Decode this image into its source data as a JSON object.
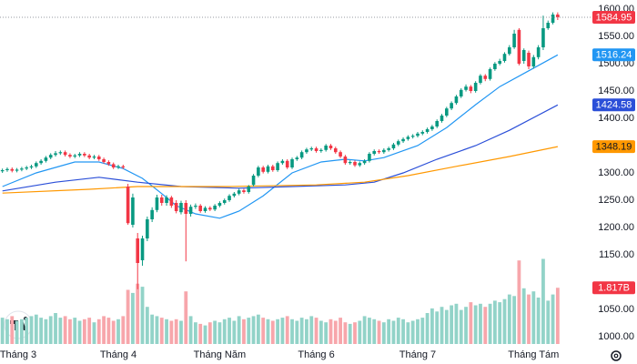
{
  "chart_data": {
    "type": "candlestick",
    "up_color": "#089981",
    "down_color": "#f23645",
    "xlim": [
      -0.5,
      122
    ],
    "ylim": [
      1000,
      1600
    ],
    "yticks": [
      {
        "value": 1600,
        "label": "1600.00"
      },
      {
        "value": 1550,
        "label": "1550.00"
      },
      {
        "value": 1500,
        "label": "1500.00"
      },
      {
        "value": 1450,
        "label": "1450.00"
      },
      {
        "value": 1400,
        "label": "1400.00"
      },
      {
        "value": 1300,
        "label": "1300.00"
      },
      {
        "value": 1250,
        "label": "1250.00"
      },
      {
        "value": 1200,
        "label": "1200.00"
      },
      {
        "value": 1150,
        "label": "1150.00"
      },
      {
        "value": 1050,
        "label": "1050.00"
      },
      {
        "value": 1000,
        "label": "1000.00"
      }
    ],
    "xticks": [
      {
        "value": 3,
        "label": "Tháng 3"
      },
      {
        "value": 24,
        "label": "Tháng 4"
      },
      {
        "value": 45,
        "label": "Tháng Năm"
      },
      {
        "value": 65,
        "label": "Tháng 6"
      },
      {
        "value": 86,
        "label": "Tháng 7"
      },
      {
        "value": 110,
        "label": "Tháng Tám"
      }
    ],
    "last_price_line": true,
    "last_color": "#f23645",
    "candles": [
      [
        1303,
        1308,
        1300,
        1305
      ],
      [
        1305,
        1310,
        1302,
        1307
      ],
      [
        1307,
        1310,
        1301,
        1304
      ],
      [
        1304,
        1309,
        1301,
        1306
      ],
      [
        1306,
        1311,
        1303,
        1308
      ],
      [
        1308,
        1313,
        1305,
        1310
      ],
      [
        1310,
        1315,
        1307,
        1312
      ],
      [
        1312,
        1321,
        1309,
        1318
      ],
      [
        1318,
        1325,
        1315,
        1322
      ],
      [
        1322,
        1331,
        1319,
        1328
      ],
      [
        1328,
        1336,
        1325,
        1333
      ],
      [
        1333,
        1340,
        1330,
        1336
      ],
      [
        1336,
        1341,
        1333,
        1338
      ],
      [
        1338,
        1341,
        1330,
        1333
      ],
      [
        1333,
        1336,
        1327,
        1330
      ],
      [
        1330,
        1335,
        1327,
        1332
      ],
      [
        1332,
        1338,
        1329,
        1335
      ],
      [
        1335,
        1338,
        1329,
        1332
      ],
      [
        1332,
        1335,
        1325,
        1328
      ],
      [
        1328,
        1333,
        1325,
        1330
      ],
      [
        1330,
        1333,
        1322,
        1325
      ],
      [
        1325,
        1328,
        1317,
        1320
      ],
      [
        1320,
        1323,
        1313,
        1316
      ],
      [
        1316,
        1319,
        1307,
        1310
      ],
      [
        1310,
        1315,
        1307,
        1312
      ],
      [
        1312,
        1315,
        1307,
        1310
      ],
      [
        1275,
        1280,
        1205,
        1208
      ],
      [
        1205,
        1262,
        1200,
        1255
      ],
      [
        1180,
        1190,
        1087,
        1135
      ],
      [
        1140,
        1185,
        1130,
        1180
      ],
      [
        1180,
        1220,
        1175,
        1215
      ],
      [
        1215,
        1237,
        1210,
        1232
      ],
      [
        1232,
        1260,
        1228,
        1255
      ],
      [
        1255,
        1260,
        1240,
        1245
      ],
      [
        1245,
        1259,
        1240,
        1255
      ],
      [
        1255,
        1258,
        1236,
        1240
      ],
      [
        1245,
        1250,
        1226,
        1230
      ],
      [
        1228,
        1249,
        1224,
        1245
      ],
      [
        1245,
        1250,
        1138,
        1225
      ],
      [
        1225,
        1242,
        1220,
        1238
      ],
      [
        1238,
        1244,
        1234,
        1240
      ],
      [
        1240,
        1243,
        1227,
        1230
      ],
      [
        1230,
        1239,
        1227,
        1236
      ],
      [
        1236,
        1239,
        1230,
        1233
      ],
      [
        1233,
        1243,
        1230,
        1240
      ],
      [
        1240,
        1248,
        1237,
        1245
      ],
      [
        1245,
        1253,
        1242,
        1250
      ],
      [
        1250,
        1261,
        1247,
        1258
      ],
      [
        1258,
        1265,
        1255,
        1262
      ],
      [
        1262,
        1271,
        1259,
        1268
      ],
      [
        1268,
        1271,
        1262,
        1265
      ],
      [
        1265,
        1278,
        1262,
        1275
      ],
      [
        1278,
        1298,
        1275,
        1295
      ],
      [
        1295,
        1313,
        1292,
        1310
      ],
      [
        1310,
        1313,
        1299,
        1302
      ],
      [
        1302,
        1315,
        1299,
        1312
      ],
      [
        1312,
        1315,
        1302,
        1305
      ],
      [
        1305,
        1321,
        1302,
        1318
      ],
      [
        1318,
        1325,
        1315,
        1322
      ],
      [
        1322,
        1325,
        1307,
        1310
      ],
      [
        1310,
        1328,
        1307,
        1325
      ],
      [
        1325,
        1331,
        1322,
        1328
      ],
      [
        1328,
        1341,
        1325,
        1338
      ],
      [
        1338,
        1346,
        1335,
        1343
      ],
      [
        1343,
        1348,
        1340,
        1345
      ],
      [
        1345,
        1348,
        1337,
        1340
      ],
      [
        1340,
        1345,
        1337,
        1342
      ],
      [
        1342,
        1353,
        1339,
        1350
      ],
      [
        1350,
        1353,
        1342,
        1345
      ],
      [
        1345,
        1348,
        1335,
        1338
      ],
      [
        1338,
        1341,
        1327,
        1330
      ],
      [
        1330,
        1333,
        1315,
        1318
      ],
      [
        1318,
        1323,
        1315,
        1320
      ],
      [
        1320,
        1323,
        1311,
        1314
      ],
      [
        1314,
        1321,
        1311,
        1318
      ],
      [
        1318,
        1325,
        1315,
        1322
      ],
      [
        1322,
        1338,
        1319,
        1335
      ],
      [
        1335,
        1343,
        1332,
        1340
      ],
      [
        1340,
        1343,
        1335,
        1338
      ],
      [
        1338,
        1345,
        1335,
        1342
      ],
      [
        1342,
        1348,
        1339,
        1345
      ],
      [
        1345,
        1355,
        1342,
        1352
      ],
      [
        1352,
        1361,
        1349,
        1358
      ],
      [
        1358,
        1365,
        1355,
        1362
      ],
      [
        1362,
        1369,
        1359,
        1366
      ],
      [
        1366,
        1371,
        1363,
        1368
      ],
      [
        1368,
        1375,
        1365,
        1372
      ],
      [
        1372,
        1378,
        1369,
        1375
      ],
      [
        1375,
        1383,
        1372,
        1380
      ],
      [
        1380,
        1388,
        1377,
        1385
      ],
      [
        1385,
        1398,
        1382,
        1395
      ],
      [
        1395,
        1408,
        1392,
        1405
      ],
      [
        1405,
        1421,
        1402,
        1418
      ],
      [
        1418,
        1431,
        1415,
        1428
      ],
      [
        1428,
        1443,
        1425,
        1440
      ],
      [
        1440,
        1455,
        1437,
        1452
      ],
      [
        1452,
        1462,
        1449,
        1458
      ],
      [
        1458,
        1461,
        1446,
        1450
      ],
      [
        1450,
        1468,
        1447,
        1465
      ],
      [
        1465,
        1481,
        1462,
        1478
      ],
      [
        1478,
        1481,
        1468,
        1472
      ],
      [
        1472,
        1493,
        1469,
        1490
      ],
      [
        1490,
        1503,
        1487,
        1500
      ],
      [
        1500,
        1509,
        1497,
        1505
      ],
      [
        1505,
        1521,
        1502,
        1518
      ],
      [
        1518,
        1534,
        1515,
        1530
      ],
      [
        1530,
        1562,
        1527,
        1555
      ],
      [
        1562,
        1565,
        1497,
        1500
      ],
      [
        1505,
        1528,
        1500,
        1525
      ],
      [
        1520,
        1524,
        1490,
        1495
      ],
      [
        1495,
        1516,
        1491,
        1512
      ],
      [
        1512,
        1534,
        1508,
        1530
      ],
      [
        1530,
        1588,
        1525,
        1565
      ],
      [
        1565,
        1579,
        1562,
        1575
      ],
      [
        1575,
        1594,
        1572,
        1590
      ],
      [
        1590,
        1594,
        1580,
        1584.95
      ]
    ],
    "volume": {
      "up_color": "#92d3c8",
      "down_color": "#f7a6ab",
      "ylim": [
        0,
        5.5
      ],
      "values": [
        0.85,
        0.8,
        0.9,
        0.75,
        0.8,
        0.85,
        0.9,
        0.95,
        0.85,
        0.8,
        0.9,
        1.0,
        0.85,
        0.9,
        0.8,
        0.85,
        0.75,
        0.8,
        0.85,
        0.7,
        0.8,
        0.9,
        0.85,
        0.75,
        0.8,
        0.9,
        1.75,
        1.65,
        1.95,
        1.85,
        1.2,
        0.95,
        0.9,
        0.85,
        0.8,
        0.75,
        0.8,
        0.75,
        1.7,
        0.9,
        0.7,
        0.65,
        0.6,
        0.7,
        0.75,
        0.7,
        0.8,
        0.85,
        0.75,
        0.9,
        0.8,
        0.85,
        0.9,
        0.95,
        0.85,
        0.8,
        0.75,
        0.8,
        0.85,
        0.9,
        0.8,
        0.75,
        0.85,
        0.8,
        0.9,
        0.85,
        0.75,
        0.7,
        0.8,
        0.75,
        0.85,
        0.7,
        0.65,
        0.7,
        0.75,
        0.9,
        0.85,
        0.8,
        0.75,
        0.7,
        0.8,
        0.75,
        0.85,
        0.8,
        0.7,
        0.75,
        0.8,
        0.85,
        1.0,
        1.15,
        1.05,
        1.2,
        1.1,
        1.25,
        1.3,
        1.1,
        1.2,
        1.35,
        1.25,
        1.3,
        1.2,
        1.3,
        1.4,
        1.35,
        1.45,
        1.6,
        1.55,
        2.7,
        1.8,
        1.6,
        1.7,
        1.5,
        2.75,
        1.4,
        1.6,
        1.817
      ],
      "value_labels": [
        null,
        null,
        null,
        null,
        null,
        null,
        null,
        null,
        null,
        null,
        null,
        null,
        null,
        null,
        null,
        null,
        null,
        null,
        null,
        null,
        null,
        null,
        null,
        null,
        null,
        null,
        null,
        null,
        null,
        null,
        null,
        null,
        null,
        null,
        null,
        null,
        null,
        null,
        null,
        null,
        null,
        null,
        null,
        null,
        null,
        null,
        null,
        null,
        null,
        null,
        null,
        null,
        null,
        null,
        null,
        null,
        null,
        null,
        null,
        null,
        null,
        null,
        null,
        null,
        null,
        null,
        null,
        null,
        null,
        null,
        null,
        null,
        null,
        null,
        null,
        null,
        null,
        null,
        null,
        null,
        null,
        null,
        null,
        null,
        null,
        null,
        null,
        null,
        null,
        null,
        null,
        null,
        null,
        null,
        null,
        null,
        null,
        null,
        null,
        null,
        null,
        null,
        null,
        null,
        null,
        null,
        null,
        null,
        null,
        null,
        null,
        null,
        null,
        null,
        null,
        "1.817B"
      ],
      "label_color": "#f23645"
    },
    "ma": [
      {
        "color": "#2196f3",
        "label_text_color": "#ffffff",
        "x": [
          0,
          7,
          15,
          20,
          25,
          29,
          33,
          36,
          40,
          45,
          49,
          54,
          60,
          66,
          71,
          75,
          79,
          86,
          92,
          98,
          103,
          109,
          115
        ],
        "values": [
          1275,
          1300,
          1320,
          1320,
          1308,
          1290,
          1262,
          1240,
          1225,
          1217,
          1230,
          1258,
          1300,
          1320,
          1325,
          1322,
          1328,
          1350,
          1383,
          1425,
          1458,
          1487,
          1516.24
        ]
      },
      {
        "color": "#2b4fd8",
        "label_text_color": "#ffffff",
        "x": [
          0,
          11,
          20,
          28,
          37,
          49,
          60,
          71,
          77,
          83,
          90,
          98,
          105,
          115
        ],
        "values": [
          1267,
          1283,
          1292,
          1283,
          1275,
          1272,
          1275,
          1278,
          1283,
          1300,
          1325,
          1350,
          1378,
          1424.58
        ]
      },
      {
        "color": "#ff9800",
        "label_text_color": "#131722",
        "x": [
          0,
          18,
          28,
          47,
          65,
          75,
          84,
          94,
          105,
          115
        ],
        "values": [
          1263,
          1270,
          1275,
          1275,
          1278,
          1283,
          1295,
          1312,
          1330,
          1348.19
        ]
      }
    ]
  }
}
